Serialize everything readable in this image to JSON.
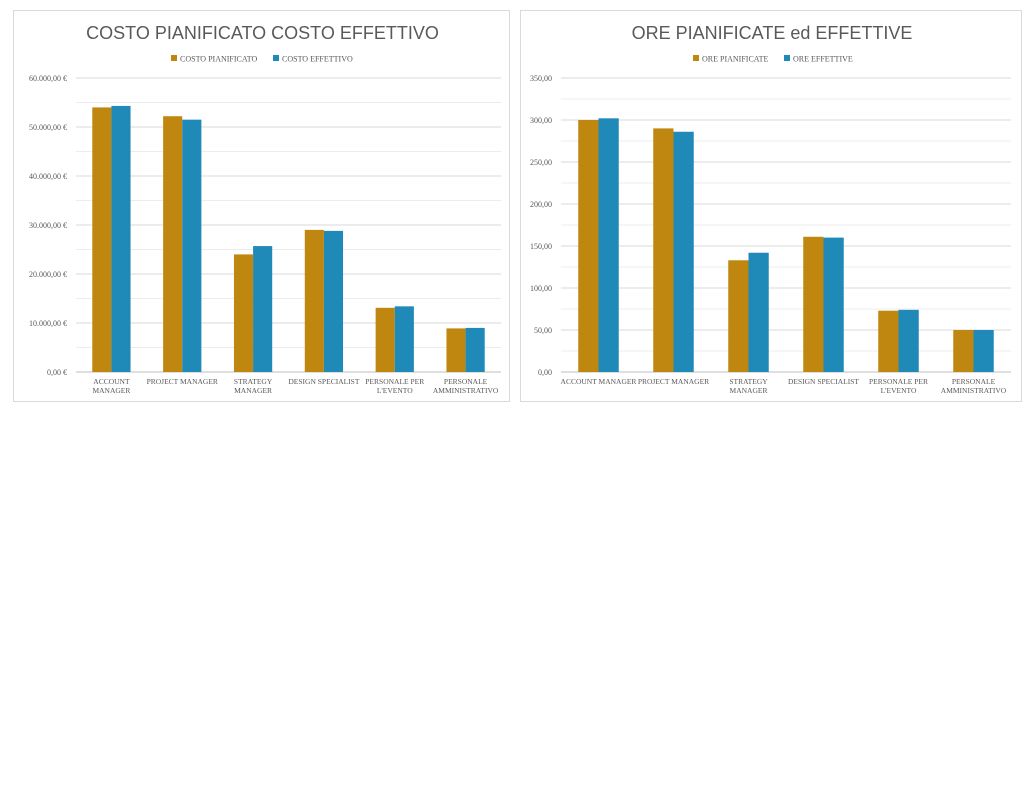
{
  "chart_data": [
    {
      "type": "bar",
      "title": "COSTO PIANIFICATO COSTO EFFETTIVO",
      "categories": [
        [
          "ACCOUNT",
          "MANAGER"
        ],
        [
          "PROJECT MANAGER"
        ],
        [
          "STRATEGY",
          "MANAGER"
        ],
        [
          "DESIGN SPECIALIST"
        ],
        [
          "PERSONALE PER",
          "L'EVENTO"
        ],
        [
          "PERSONALE",
          "AMMINISTRATIVO"
        ]
      ],
      "series": [
        {
          "name": "COSTO PIANIFICATO",
          "color": "#bf8710",
          "values": [
            54000,
            52200,
            24000,
            29000,
            13100,
            8900
          ]
        },
        {
          "name": "COSTO EFFETTIVO",
          "color": "#1f8ab8",
          "values": [
            54300,
            51500,
            25700,
            28800,
            13400,
            9000
          ]
        }
      ],
      "ylim": [
        0,
        60000
      ],
      "yticks": [
        0,
        10000,
        20000,
        30000,
        40000,
        50000,
        60000
      ],
      "ytick_labels": [
        "0,00 €",
        "10.000,00 €",
        "20.000,00 €",
        "30.000,00 €",
        "40.000,00 €",
        "50.000,00 €",
        "60.000,00 €"
      ],
      "grid": true,
      "legend": "top-center",
      "xlabel": "",
      "ylabel": ""
    },
    {
      "type": "bar",
      "title": "ORE PIANIFICATE ed EFFETTIVE",
      "categories": [
        [
          "ACCOUNT MANAGER"
        ],
        [
          "PROJECT MANAGER"
        ],
        [
          "STRATEGY",
          "MANAGER"
        ],
        [
          "DESIGN SPECIALIST"
        ],
        [
          "PERSONALE PER",
          "L'EVENTO"
        ],
        [
          "PERSONALE",
          "AMMINISTRATIVO"
        ]
      ],
      "series": [
        {
          "name": "ORE PIANIFICATE",
          "color": "#bf8710",
          "values": [
            300,
            290,
            133,
            161,
            73,
            50
          ]
        },
        {
          "name": "ORE EFFETTIVE",
          "color": "#1f8ab8",
          "values": [
            302,
            286,
            142,
            160,
            74,
            50
          ]
        }
      ],
      "ylim": [
        0,
        350
      ],
      "yticks": [
        0,
        50,
        100,
        150,
        200,
        250,
        300,
        350
      ],
      "ytick_labels": [
        "0,00",
        "50,00",
        "100,00",
        "150,00",
        "200,00",
        "250,00",
        "300,00",
        "350,00"
      ],
      "grid": true,
      "legend": "top-center",
      "xlabel": "",
      "ylabel": ""
    }
  ]
}
